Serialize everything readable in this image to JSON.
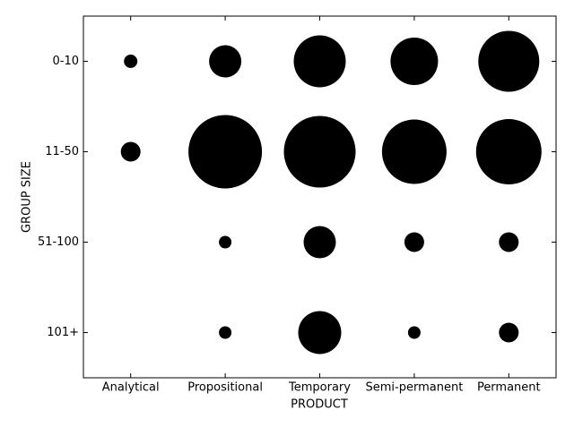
{
  "chart_data": {
    "type": "bubble",
    "x_label": "PRODUCT",
    "y_label": "GROUP SIZE",
    "categories": [
      "Analytical",
      "Propositional",
      "Temporary",
      "Semi-permanent",
      "Permanent"
    ],
    "y_categories": [
      "0-10",
      "11-50",
      "51-100",
      "101+"
    ],
    "sizes": [
      [
        15,
        36,
        58,
        53,
        68
      ],
      [
        22,
        82,
        80,
        72,
        73
      ],
      [
        null,
        14,
        36,
        22,
        22
      ],
      [
        null,
        14,
        48,
        14,
        22
      ]
    ],
    "color": "#000000"
  }
}
